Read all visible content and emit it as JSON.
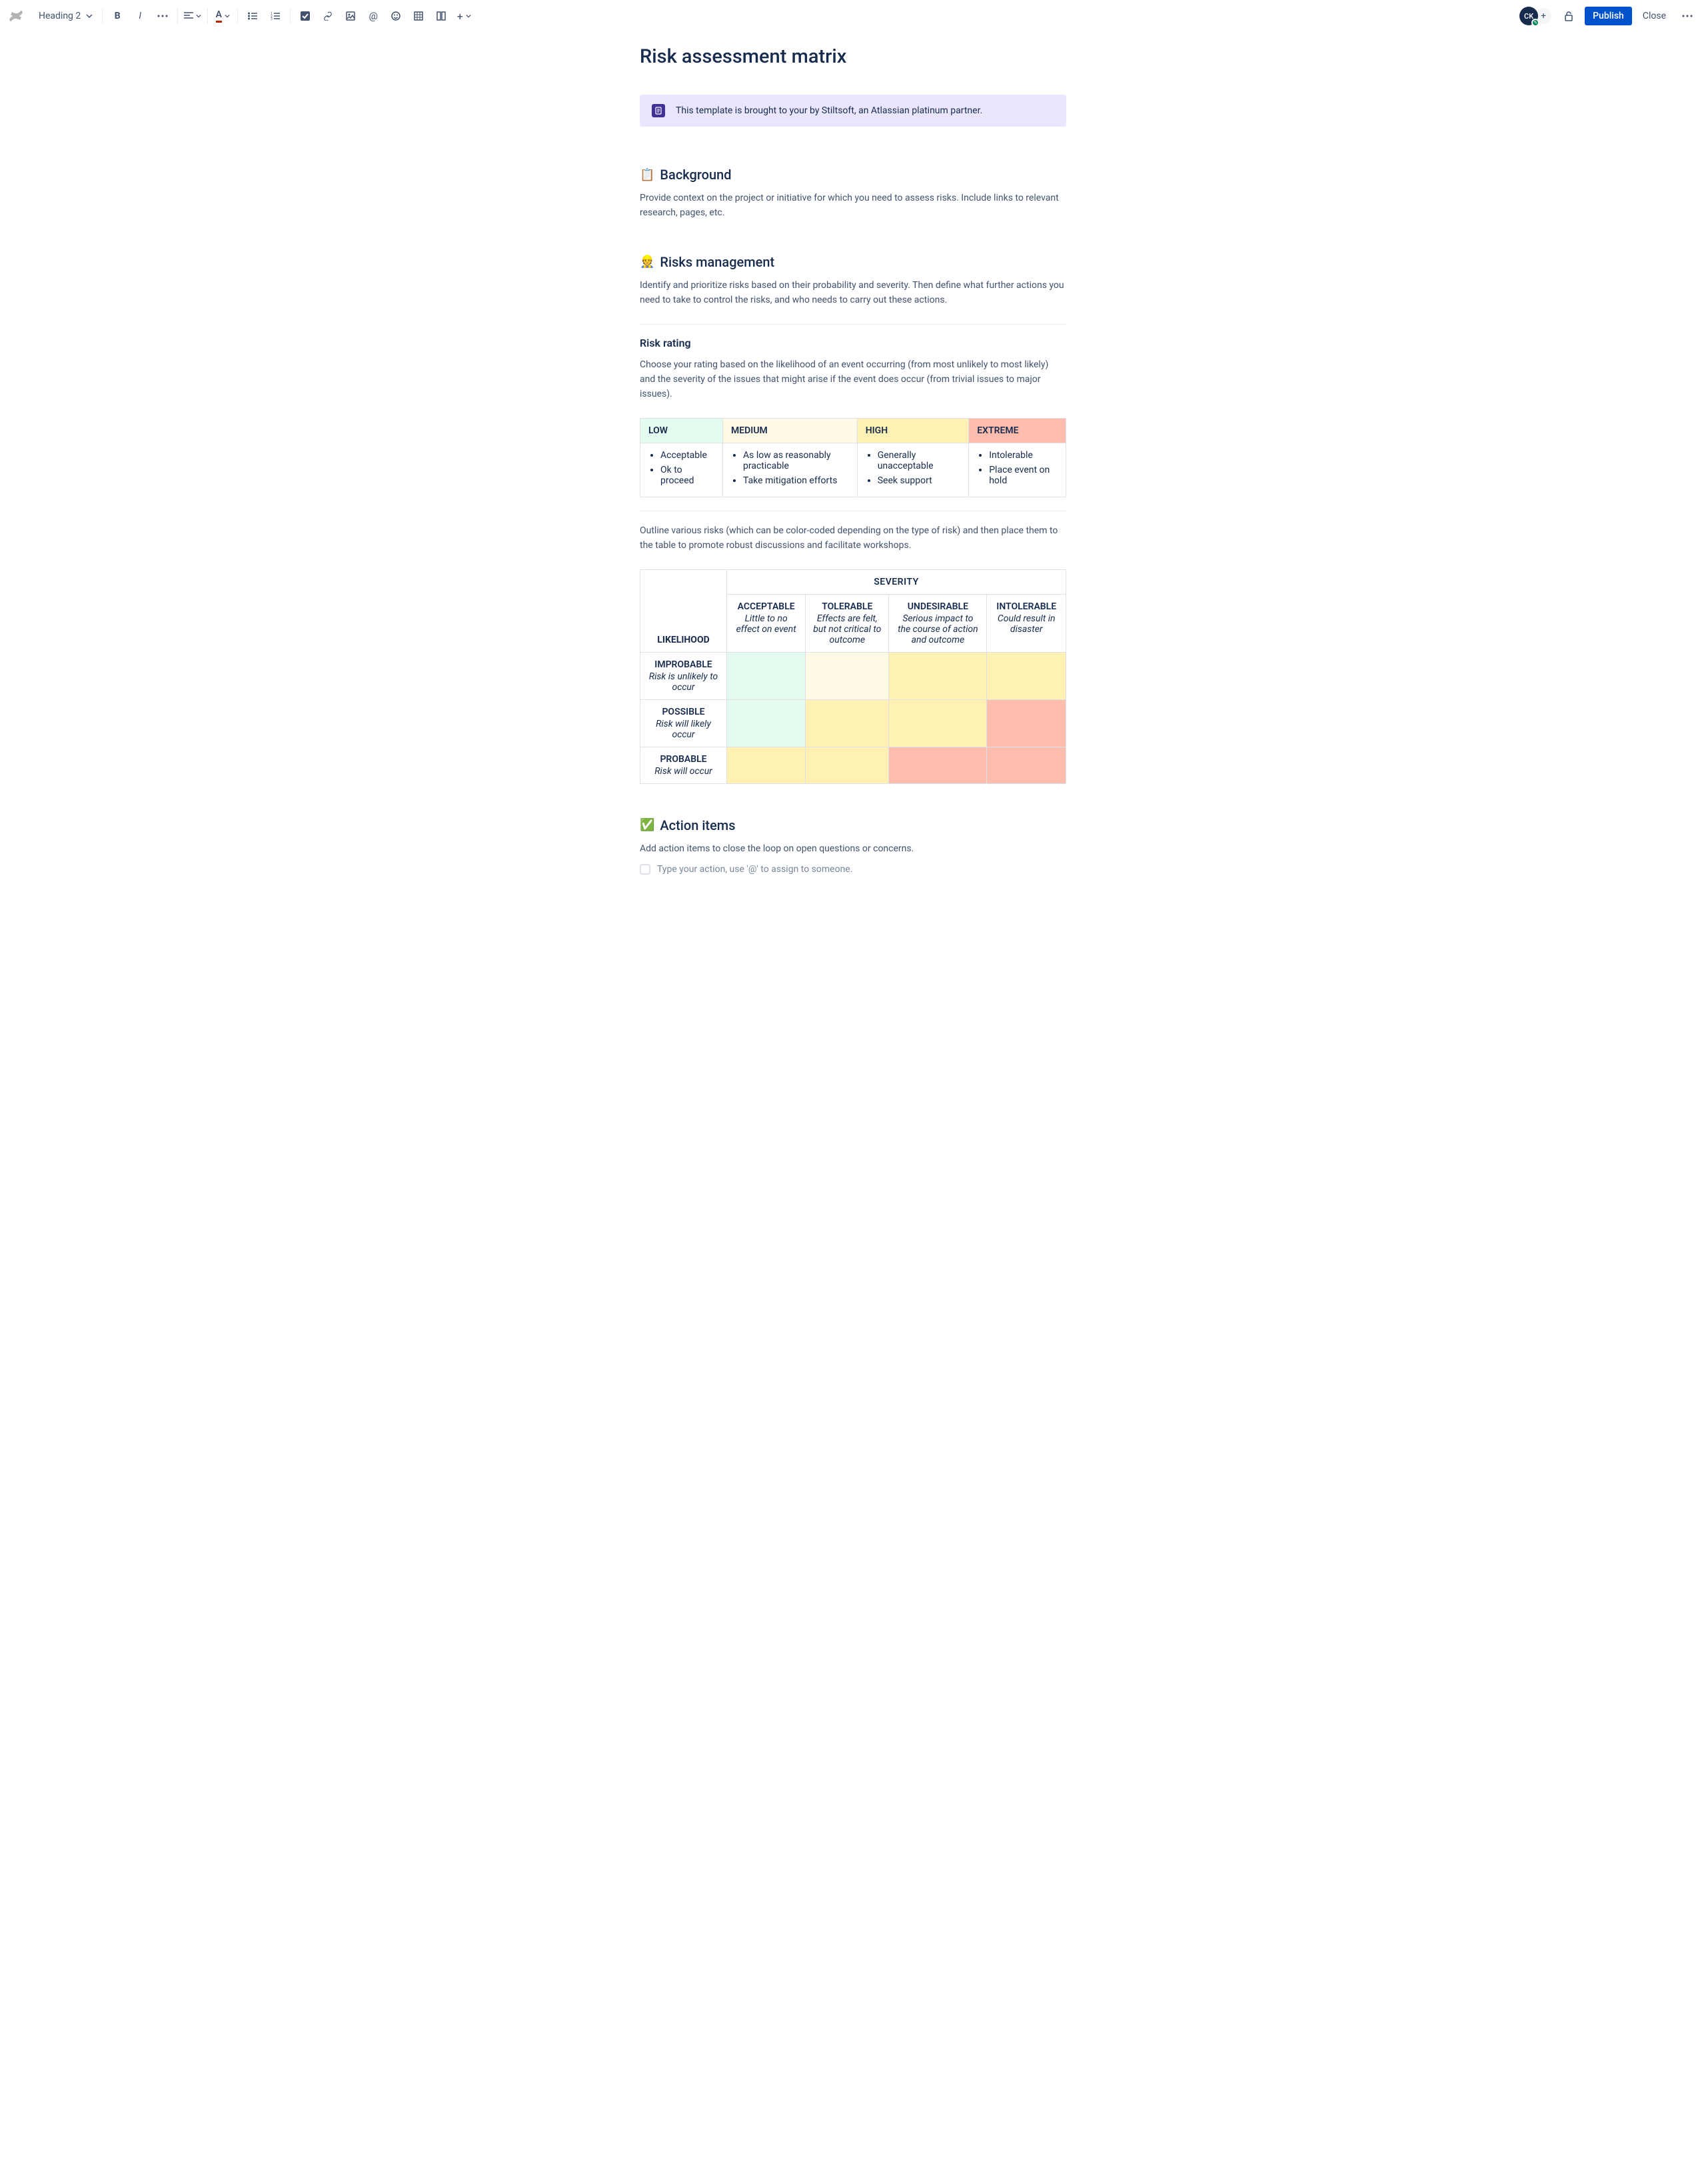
{
  "toolbar": {
    "style_dropdown": "Heading 2",
    "publish": "Publish",
    "close": "Close",
    "avatar_initials": "CK"
  },
  "page": {
    "title": "Risk assessment matrix",
    "info_panel": "This template is brought to your by Stiltsoft, an Atlassian platinum partner."
  },
  "background": {
    "emoji": "📋",
    "heading": "Background",
    "text": "Provide context on the project or initiative for which you need to assess risks. Include links to relevant research, pages, etc."
  },
  "risks_mgmt": {
    "emoji": "👷",
    "heading": "Risks management",
    "text": "Identify and prioritize risks based on their probability and severity. Then define what further actions you need to take to control the risks, and who needs to carry out these actions."
  },
  "risk_rating": {
    "heading": "Risk rating",
    "text": "Choose your rating based on the likelihood of an event occurring (from most unlikely to most likely) and the severity of the issues that might arise if the event does occur (from trivial issues to major issues).",
    "colors": {
      "low": "#e3fcef",
      "medium": "#fffae6",
      "high": "#fff0b3",
      "extreme": "#ffbdad"
    },
    "headers": {
      "low": "LOW",
      "medium": "MEDIUM",
      "high": "HIGH",
      "extreme": "EXTREME"
    },
    "items": {
      "low": [
        "Acceptable",
        "Ok to proceed"
      ],
      "medium": [
        "As low as reasonably practicable",
        "Take mitigation efforts"
      ],
      "high": [
        "Generally unacceptable",
        "Seek support"
      ],
      "extreme": [
        "Intolerable",
        "Place event on hold"
      ]
    }
  },
  "matrix_intro": "Outline various risks (which can be color-coded depending on the type of risk) and then place them to the table to promote robust discussions and facilitate workshops.",
  "matrix": {
    "severity_label": "SEVERITY",
    "likelihood_label": "LIKELIHOOD",
    "cols": [
      {
        "title": "ACCEPTABLE",
        "desc": "Little to no effect on event"
      },
      {
        "title": "TOLERABLE",
        "desc": "Effects are felt, but not critical to outcome"
      },
      {
        "title": "UNDESIRABLE",
        "desc": "Serious impact to the course of action and outcome"
      },
      {
        "title": "INTOLERABLE",
        "desc": "Could result in disaster"
      }
    ],
    "rows": [
      {
        "title": "IMPROBABLE",
        "desc": "Risk is unlikely to occur",
        "cells": [
          "#e3fcef",
          "#fffae6",
          "#fff0b3",
          "#fff0b3"
        ]
      },
      {
        "title": "POSSIBLE",
        "desc": "Risk will likely occur",
        "cells": [
          "#e3fcef",
          "#fff0b3",
          "#fff0b3",
          "#ffbdad"
        ]
      },
      {
        "title": "PROBABLE",
        "desc": "Risk will occur",
        "cells": [
          "#fff0b3",
          "#fff0b3",
          "#ffbdad",
          "#ffbdad"
        ]
      }
    ]
  },
  "action_items": {
    "emoji": "✅",
    "heading": "Action items",
    "text": "Add action items to close the loop on open questions or concerns.",
    "placeholder": "Type your action, use '@' to assign to someone."
  }
}
